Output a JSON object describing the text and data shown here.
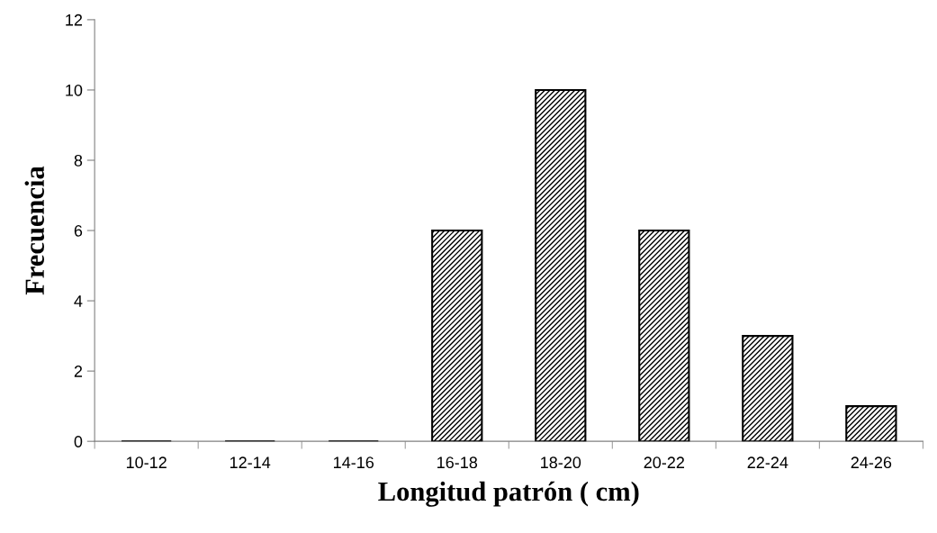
{
  "chart_data": {
    "type": "bar",
    "xlabel": "Longitud patrón ( cm)",
    "ylabel": "Frecuencia",
    "categories": [
      "10-12",
      "12-14",
      "14-16",
      "16-18",
      "18-20",
      "20-22",
      "22-24",
      "24-26"
    ],
    "values": [
      0,
      0,
      0,
      6,
      10,
      6,
      3,
      1
    ],
    "color": "#000000",
    "ylim": [
      0,
      12
    ],
    "yticks": [
      0,
      2,
      4,
      6,
      8,
      10,
      12
    ],
    "grid": false,
    "legend": false
  }
}
